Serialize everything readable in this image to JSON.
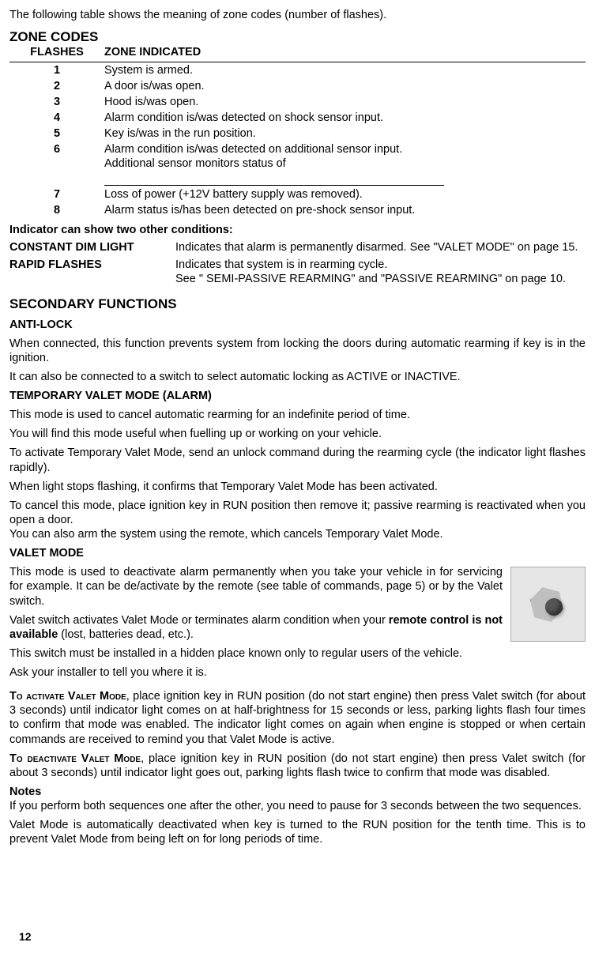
{
  "intro": "The following table shows the meaning of zone codes (number of flashes).",
  "zone_heading": "ZONE CODES",
  "table": {
    "headers": {
      "flashes": "FLASHES",
      "zone": "ZONE INDICATED"
    },
    "rows": [
      {
        "n": "1",
        "text": "System is armed."
      },
      {
        "n": "2",
        "text": "A door is/was open."
      },
      {
        "n": "3",
        "text": "Hood is/was open."
      },
      {
        "n": "4",
        "text": "Alarm condition is/was detected on shock sensor input."
      },
      {
        "n": "5",
        "text": "Key is/was in the run position."
      },
      {
        "n": "6",
        "text": "Alarm condition is/was detected on additional sensor input.",
        "text2": "Additional sensor monitors status of  "
      },
      {
        "n": "7",
        "text": "Loss of power (+12V battery supply was removed)."
      },
      {
        "n": "8",
        "text": "Alarm status is/has been detected on pre-shock sensor input."
      }
    ]
  },
  "other_cond_heading": "Indicator can show two other conditions:",
  "cond1": {
    "label": "CONSTANT DIM LIGHT",
    "text": "Indicates that alarm is permanently disarmed. See \"VALET MODE\" on page 15."
  },
  "cond2": {
    "label": "RAPID FLASHES",
    "text1": "Indicates that system is in rearming cycle.",
    "text2": "See \" SEMI-PASSIVE REARMING\" and \"PASSIVE REARMING\" on page  10."
  },
  "sec_heading": "SECONDARY FUNCTIONS",
  "antilock_h": "ANTI-LOCK",
  "antilock_p1": "When connected, this function prevents system from locking the doors during automatic rearming if key is in the ignition.",
  "antilock_p2": "It can also be connected to a switch to select automatic locking as ACTIVE or INACTIVE.",
  "tvm_h": "TEMPORARY VALET MODE (ALARM)",
  "tvm_p1": "This mode is used to cancel automatic rearming for an indefinite period of time.",
  "tvm_p2": "You will find this mode useful when fuelling up or working on your vehicle.",
  "tvm_p3": "To activate Temporary Valet Mode, send an unlock command during the rearming cycle (the indicator light flashes rapidly).",
  "tvm_p4": "When light stops flashing, it confirms that Temporary Valet Mode has been activated.",
  "tvm_p5": "To cancel this mode, place ignition key in RUN position then remove it; passive rearming is reactivated when you open a door.",
  "tvm_p6": "You can also arm the system using the remote, which cancels Temporary Valet Mode.",
  "vm_h": "VALET MODE",
  "vm_p1": "This mode is used to deactivate alarm permanently when you take your vehicle in for servicing for example. It can be de/activate by the remote (see table of commands, page 5) or by the Valet switch.",
  "vm_p2a": "Valet switch activates Valet Mode or terminates alarm condition when your ",
  "vm_p2b": "remote control is not available",
  "vm_p2c": " (lost, batteries dead, etc.).",
  "vm_p3": "This switch must be installed in a hidden place known only to regular users of the vehicle.",
  "vm_p4": "Ask your installer to tell you where it is.",
  "act_label": "To activate Valet Mode",
  "act_text": ", place ignition key in RUN position (do not start engine) then press Valet switch (for about 3 seconds) until indicator light comes on at half-brightness for 15 seconds or less, parking lights flash four times to confirm that mode was enabled. The indicator light comes on again when engine is stopped or when certain commands are received to remind you that Valet Mode is active.",
  "deact_label": "To deactivate Valet Mode",
  "deact_text": ", place ignition key in RUN position (do not start engine) then press Valet switch (for about 3 seconds) until indicator light goes out, parking lights flash twice to confirm that mode was disabled.",
  "notes_h": "Notes",
  "notes_p1": "If you perform both sequences one after the other, you need to pause for 3 seconds between the two sequences.",
  "notes_p2": "Valet Mode is automatically deactivated when key is turned to the RUN position for the tenth time. This is to prevent Valet Mode from being left on for long periods of time.",
  "page": "12"
}
